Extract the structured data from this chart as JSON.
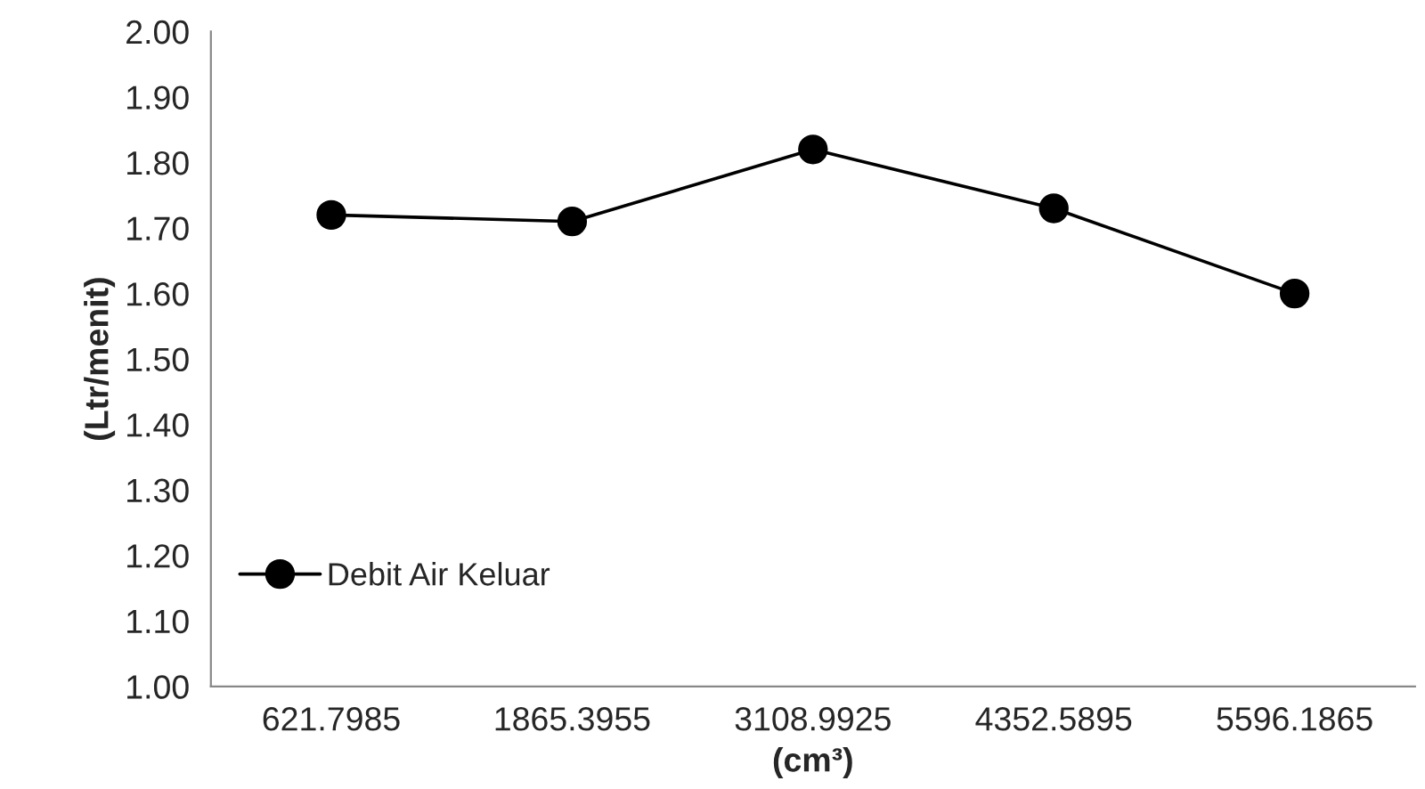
{
  "chart_data": {
    "type": "line",
    "xlabel": "(cm³)",
    "ylabel": "(Ltr/menit)",
    "categories": [
      "621.7985",
      "1865.3955",
      "3108.9925",
      "4352.5895",
      "5596.1865"
    ],
    "series": [
      {
        "name": "Debit Air Keluar",
        "color": "#000000",
        "values": [
          1.72,
          1.71,
          1.82,
          1.73,
          1.6
        ]
      }
    ],
    "ylim": [
      1.0,
      2.0
    ],
    "yticks": [
      {
        "value": 1.0,
        "label": "1.00"
      },
      {
        "value": 1.1,
        "label": "1.10"
      },
      {
        "value": 1.2,
        "label": "1.20"
      },
      {
        "value": 1.3,
        "label": "1.30"
      },
      {
        "value": 1.4,
        "label": "1.40"
      },
      {
        "value": 1.5,
        "label": "1.50"
      },
      {
        "value": 1.6,
        "label": "1.60"
      },
      {
        "value": 1.7,
        "label": "1.70"
      },
      {
        "value": 1.8,
        "label": "1.80"
      },
      {
        "value": 1.9,
        "label": "1.90"
      },
      {
        "value": 2.0,
        "label": "2.00"
      }
    ],
    "marker": "circle",
    "line_style": "solid",
    "grid": false,
    "legend": "bottom left"
  }
}
